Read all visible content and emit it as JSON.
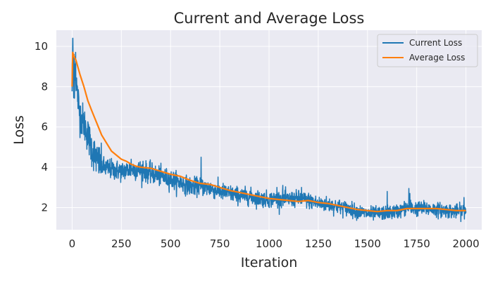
{
  "chart_data": {
    "type": "line",
    "title": "Current and Average Loss",
    "xlabel": "Iteration",
    "ylabel": "Loss",
    "xlim": [
      -80,
      2080
    ],
    "ylim": [
      0.9,
      10.8
    ],
    "xticks": [
      0,
      250,
      500,
      750,
      1000,
      1250,
      1500,
      1750,
      2000
    ],
    "yticks": [
      2,
      4,
      6,
      8,
      10
    ],
    "grid": true,
    "background": "#eaeaf2",
    "legend_position": "top-right",
    "series": [
      {
        "name": "Current Loss",
        "color": "#1f77b4",
        "noise": 0.18,
        "anchors": [
          [
            0,
            7.9
          ],
          [
            3,
            10.4
          ],
          [
            8,
            7.4
          ],
          [
            15,
            9.0
          ],
          [
            25,
            7.8
          ],
          [
            40,
            6.6
          ],
          [
            60,
            6.2
          ],
          [
            80,
            5.6
          ],
          [
            100,
            4.9
          ],
          [
            130,
            4.3
          ],
          [
            160,
            4.0
          ],
          [
            200,
            3.9
          ],
          [
            250,
            3.8
          ],
          [
            300,
            3.9
          ],
          [
            350,
            3.85
          ],
          [
            400,
            3.7
          ],
          [
            450,
            3.55
          ],
          [
            500,
            3.4
          ],
          [
            550,
            3.25
          ],
          [
            600,
            3.05
          ],
          [
            650,
            3.05
          ],
          [
            700,
            2.95
          ],
          [
            750,
            2.8
          ],
          [
            800,
            2.7
          ],
          [
            850,
            2.6
          ],
          [
            900,
            2.55
          ],
          [
            950,
            2.45
          ],
          [
            1000,
            2.4
          ],
          [
            1050,
            2.45
          ],
          [
            1100,
            2.4
          ],
          [
            1150,
            2.45
          ],
          [
            1200,
            2.35
          ],
          [
            1250,
            2.2
          ],
          [
            1300,
            2.15
          ],
          [
            1350,
            2.05
          ],
          [
            1400,
            1.95
          ],
          [
            1450,
            1.8
          ],
          [
            1500,
            1.7
          ],
          [
            1550,
            1.7
          ],
          [
            1600,
            1.75
          ],
          [
            1650,
            1.8
          ],
          [
            1700,
            2.0
          ],
          [
            1750,
            1.95
          ],
          [
            1800,
            1.95
          ],
          [
            1850,
            1.9
          ],
          [
            1900,
            1.85
          ],
          [
            1950,
            1.8
          ],
          [
            2000,
            1.85
          ]
        ],
        "spikes": [
          [
            3,
            10.4
          ],
          [
            10,
            9.6
          ],
          [
            18,
            9.7
          ],
          [
            300,
            4.4
          ],
          [
            360,
            4.3
          ],
          [
            655,
            4.5
          ],
          [
            1040,
            3.0
          ],
          [
            1070,
            3.1
          ],
          [
            1165,
            3.0
          ],
          [
            1600,
            2.8
          ],
          [
            1710,
            2.95
          ],
          [
            1715,
            2.7
          ],
          [
            1990,
            2.5
          ]
        ]
      },
      {
        "name": "Average Loss",
        "color": "#ff7f0e",
        "points": [
          [
            0,
            8.0
          ],
          [
            3,
            9.7
          ],
          [
            10,
            9.5
          ],
          [
            20,
            9.3
          ],
          [
            40,
            8.6
          ],
          [
            60,
            8.0
          ],
          [
            80,
            7.3
          ],
          [
            100,
            6.8
          ],
          [
            125,
            6.2
          ],
          [
            150,
            5.6
          ],
          [
            175,
            5.2
          ],
          [
            200,
            4.8
          ],
          [
            225,
            4.6
          ],
          [
            250,
            4.4
          ],
          [
            275,
            4.3
          ],
          [
            300,
            4.15
          ],
          [
            325,
            4.05
          ],
          [
            350,
            4.0
          ],
          [
            400,
            3.95
          ],
          [
            450,
            3.8
          ],
          [
            500,
            3.65
          ],
          [
            550,
            3.55
          ],
          [
            600,
            3.35
          ],
          [
            650,
            3.2
          ],
          [
            700,
            3.15
          ],
          [
            750,
            3.0
          ],
          [
            800,
            2.85
          ],
          [
            850,
            2.75
          ],
          [
            900,
            2.65
          ],
          [
            950,
            2.55
          ],
          [
            1000,
            2.45
          ],
          [
            1050,
            2.4
          ],
          [
            1100,
            2.35
          ],
          [
            1150,
            2.3
          ],
          [
            1200,
            2.35
          ],
          [
            1250,
            2.25
          ],
          [
            1300,
            2.2
          ],
          [
            1350,
            2.1
          ],
          [
            1400,
            2.0
          ],
          [
            1450,
            1.9
          ],
          [
            1500,
            1.85
          ],
          [
            1550,
            1.8
          ],
          [
            1600,
            1.85
          ],
          [
            1650,
            1.85
          ],
          [
            1700,
            1.95
          ],
          [
            1750,
            1.95
          ],
          [
            1800,
            1.95
          ],
          [
            1850,
            1.95
          ],
          [
            1900,
            1.9
          ],
          [
            1950,
            1.85
          ],
          [
            2000,
            1.85
          ]
        ]
      }
    ]
  }
}
